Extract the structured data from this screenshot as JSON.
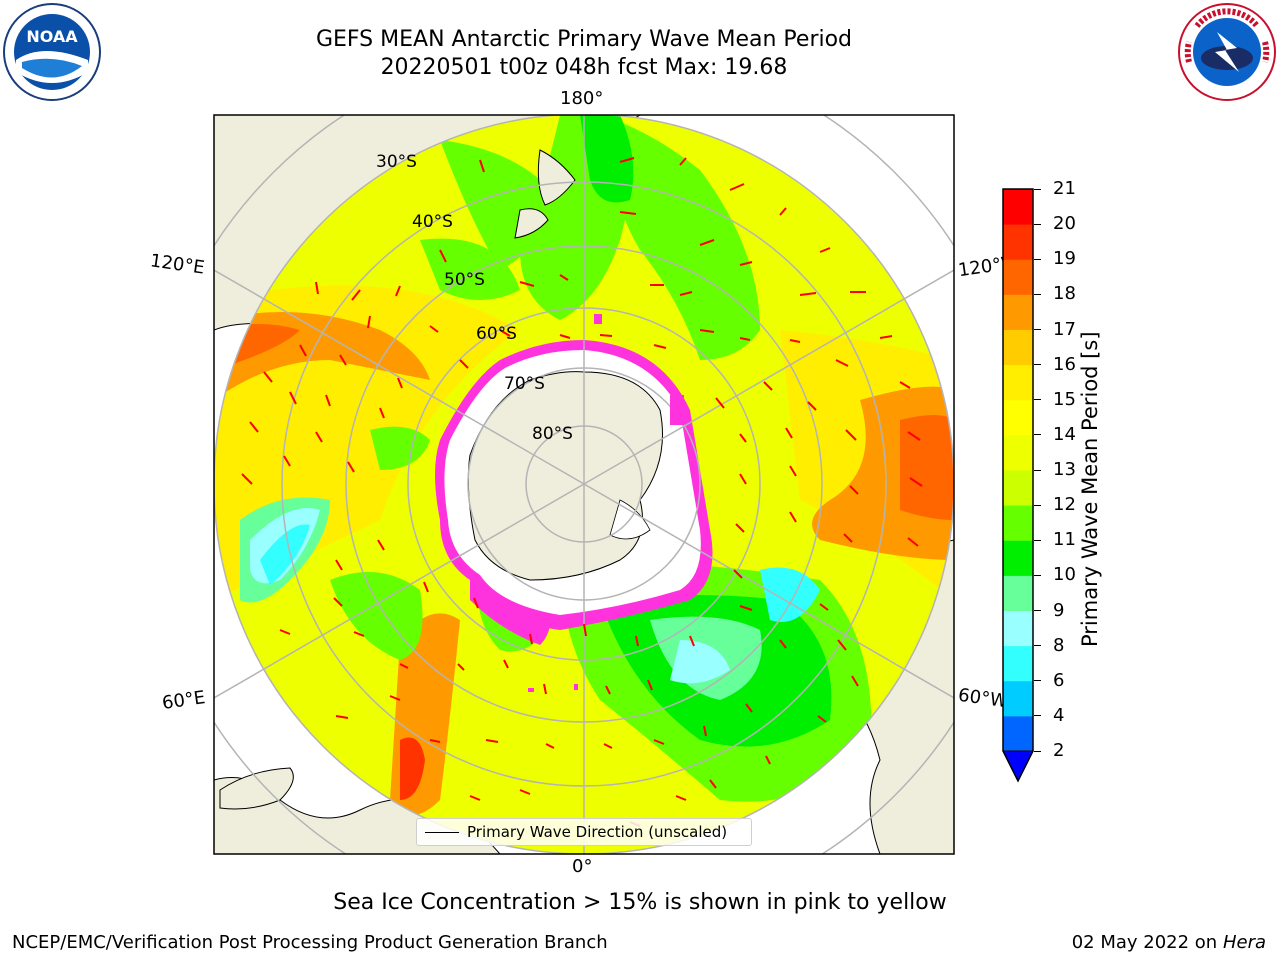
{
  "header": {
    "title_line1": "GEFS MEAN Antarctic Primary Wave Mean Period",
    "title_line2": "20220501 t00z 048h fcst   Max: 19.68"
  },
  "logos": {
    "left": "noaa-logo",
    "right": "national-weather-service-logo",
    "left_text": "NOAA",
    "right_text": "NATIONAL WEATHER SERVICE"
  },
  "map": {
    "projection": "south-polar-stereographic",
    "lon_labels": {
      "top": "180°",
      "bottom": "0°",
      "left_upper": "120°E",
      "left_lower": "60°E",
      "right_upper": "120°W",
      "right_lower": "60°W"
    },
    "lat_labels": [
      "30°S",
      "40°S",
      "50°S",
      "60°S",
      "70°S",
      "80°S"
    ],
    "colors": {
      "land": "#efeedc",
      "ice": "#ffffff",
      "ice_edge": "#ff33dd",
      "arrow": "#ff0000"
    }
  },
  "legend": {
    "label": "Primary Wave Direction (unscaled)"
  },
  "colorbar": {
    "label": "Primary Wave Mean Period [s]",
    "ticks": [
      "2",
      "4",
      "6",
      "8",
      "9",
      "10",
      "11",
      "12",
      "13",
      "14",
      "15",
      "16",
      "17",
      "18",
      "19",
      "20",
      "21"
    ],
    "colors": [
      "#0066ff",
      "#00ccff",
      "#33ffff",
      "#99ffff",
      "#66ff99",
      "#00ee00",
      "#66ff00",
      "#ccff00",
      "#eeff00",
      "#ffff00",
      "#ffee00",
      "#ffcc00",
      "#ff9900",
      "#ff6600",
      "#ff3300",
      "#ff0000"
    ],
    "under_color": "#0000ff"
  },
  "footer": {
    "note": "Sea Ice Concentration > 15% is shown in pink to yellow",
    "credit": "NCEP/EMC/Verification Post Processing Product Generation Branch",
    "date": "02 May 2022 on",
    "machine": "Hera"
  }
}
